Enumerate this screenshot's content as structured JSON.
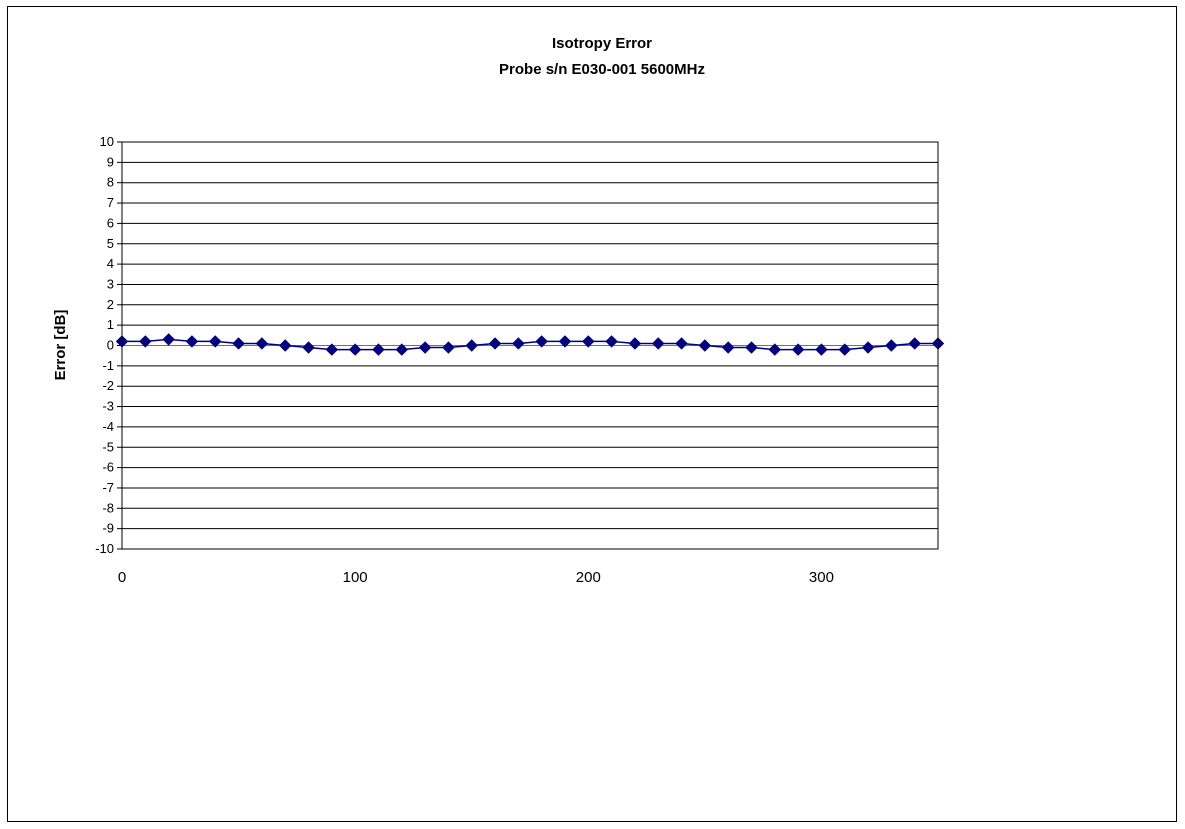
{
  "chart_data": {
    "type": "line",
    "title": "Isotropy Error",
    "subtitle": "Probe s/n E030-001 5600MHz",
    "xlabel": "",
    "ylabel": "Error [dB]",
    "xlim": [
      0,
      350
    ],
    "ylim": [
      -10,
      10
    ],
    "x_ticks": [
      "0",
      "100",
      "200",
      "300"
    ],
    "y_ticks": [
      "10",
      "9",
      "8",
      "7",
      "6",
      "5",
      "4",
      "3",
      "2",
      "1",
      "0",
      "-1",
      "-2",
      "-3",
      "-4",
      "-5",
      "-6",
      "-7",
      "-8",
      "-9",
      "-10"
    ],
    "grid": true,
    "legend": "none",
    "colors": {
      "series": "#000080",
      "grid": "#000000",
      "zero_line": "#808000"
    },
    "series": [
      {
        "x": [
          0,
          10,
          20,
          30,
          40,
          50,
          60,
          70,
          80,
          90,
          100,
          110,
          120,
          130,
          140,
          150,
          160,
          170,
          180,
          190,
          200,
          210,
          220,
          230,
          240,
          250,
          260,
          270,
          280,
          290,
          300,
          310,
          320,
          330,
          340,
          350
        ],
        "values": [
          0.2,
          0.2,
          0.3,
          0.2,
          0.2,
          0.1,
          0.1,
          0.0,
          -0.1,
          -0.2,
          -0.2,
          -0.2,
          -0.2,
          -0.1,
          -0.1,
          0.0,
          0.1,
          0.1,
          0.2,
          0.2,
          0.2,
          0.2,
          0.1,
          0.1,
          0.1,
          0.0,
          -0.1,
          -0.1,
          -0.2,
          -0.2,
          -0.2,
          -0.2,
          -0.1,
          0.0,
          0.1,
          0.1
        ]
      }
    ]
  }
}
